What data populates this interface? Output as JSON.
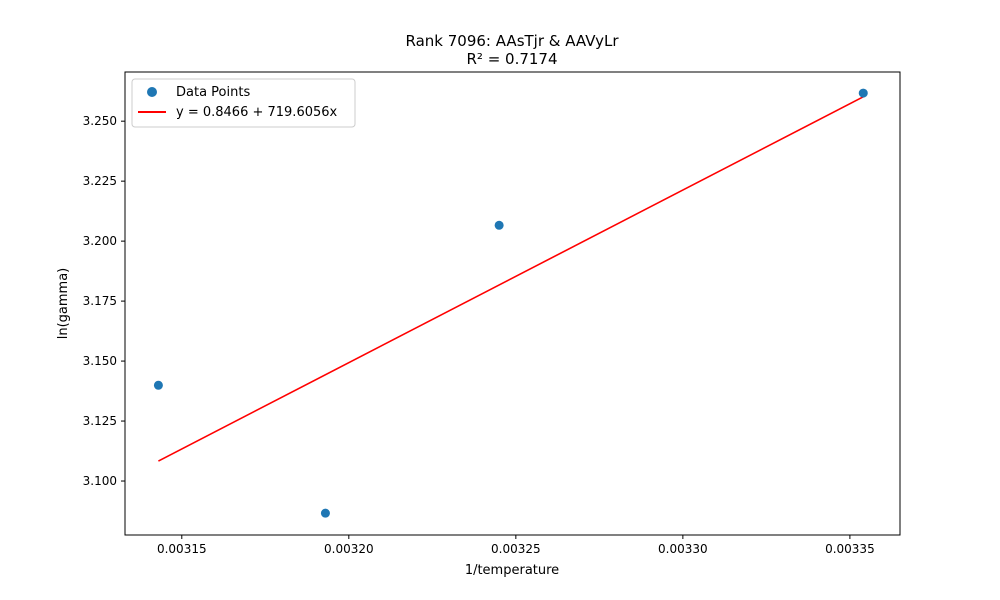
{
  "chart_data": {
    "type": "scatter",
    "title": "Rank 7096: AAsTjr & AAVyLr",
    "subtitle": "R² = 0.7174",
    "xlabel": "1/temperature",
    "ylabel": "ln(gamma)",
    "xlim": [
      0.003133,
      0.003365
    ],
    "ylim": [
      3.0775,
      3.2705
    ],
    "x_ticks": [
      0.00315,
      0.0032,
      0.00325,
      0.0033,
      0.00335
    ],
    "x_tick_labels": [
      "0.00315",
      "0.00320",
      "0.00325",
      "0.00330",
      "0.00335"
    ],
    "y_ticks": [
      3.1,
      3.125,
      3.15,
      3.175,
      3.2,
      3.225,
      3.25
    ],
    "y_tick_labels": [
      "3.100",
      "3.125",
      "3.150",
      "3.175",
      "3.200",
      "3.225",
      "3.250"
    ],
    "grid": false,
    "legend_position": "top-left",
    "series": [
      {
        "name": "Data Points",
        "kind": "scatter",
        "color": "#1f77b4",
        "x": [
          0.003143,
          0.003193,
          0.003245,
          0.003354
        ],
        "y": [
          3.1399,
          3.0866,
          3.2066,
          3.2617
        ]
      },
      {
        "name": "y = 0.8466 + 719.6056x",
        "kind": "line",
        "color": "#ff0000",
        "intercept": 0.8466,
        "slope": 719.6056,
        "x": [
          0.003143,
          0.003354
        ]
      }
    ]
  }
}
